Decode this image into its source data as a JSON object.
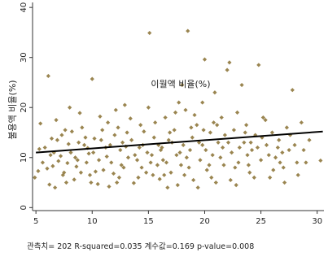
{
  "chart_data": {
    "type": "scatter",
    "xlabel": "이월액 비율(%)",
    "ylabel": "불용액 비율(%)",
    "xlim": [
      4.7,
      30.6
    ],
    "ylim": [
      -0.6,
      41
    ],
    "xticks": [
      5,
      10,
      15,
      20,
      25,
      30
    ],
    "yticks": [
      0,
      10,
      20,
      30,
      40
    ],
    "grid": false,
    "legend": "none",
    "marker_color": "#9a8550",
    "fit_color": "#000000",
    "fit_line": {
      "x": [
        5,
        30.5
      ],
      "y": [
        11.0,
        15.2
      ]
    },
    "annotation": "관측치= 202 R-squared=0.035 계수값=0.169 p-value=0.008",
    "series": [
      {
        "points": [
          [
            4.9,
            6.0
          ],
          [
            5.2,
            7.3
          ],
          [
            5.4,
            16.8
          ],
          [
            5.8,
            12.0
          ],
          [
            6.0,
            7.8
          ],
          [
            6.1,
            26.3
          ],
          [
            6.2,
            4.6
          ],
          [
            6.3,
            10.5
          ],
          [
            6.5,
            8.3
          ],
          [
            6.6,
            11.0
          ],
          [
            6.8,
            17.5
          ],
          [
            6.9,
            13.5
          ],
          [
            7.0,
            9.3
          ],
          [
            7.3,
            14.5
          ],
          [
            7.5,
            7.0
          ],
          [
            7.7,
            5.0
          ],
          [
            7.9,
            12.7
          ],
          [
            8.0,
            20.0
          ],
          [
            8.2,
            15.2
          ],
          [
            8.5,
            10.0
          ],
          [
            8.6,
            8.2
          ],
          [
            8.8,
            13.0
          ],
          [
            8.9,
            18.9
          ],
          [
            9.0,
            7.0
          ],
          [
            9.3,
            12.5
          ],
          [
            9.5,
            9.0
          ],
          [
            9.7,
            10.8
          ],
          [
            9.8,
            6.5
          ],
          [
            10.0,
            25.7
          ],
          [
            10.2,
            13.8
          ],
          [
            10.5,
            4.7
          ],
          [
            10.6,
            9.5
          ],
          [
            10.7,
            18.2
          ],
          [
            11.0,
            7.5
          ],
          [
            11.2,
            12.0
          ],
          [
            11.5,
            4.2
          ],
          [
            11.7,
            9.0
          ],
          [
            12.0,
            14.5
          ],
          [
            12.1,
            19.5
          ],
          [
            12.4,
            6.0
          ],
          [
            12.5,
            11.5
          ],
          [
            12.8,
            8.0
          ],
          [
            12.9,
            20.5
          ],
          [
            13.2,
            10.0
          ],
          [
            13.5,
            13.5
          ],
          [
            13.7,
            4.9
          ],
          [
            14.0,
            9.5
          ],
          [
            14.3,
            16.5
          ],
          [
            14.5,
            12.5
          ],
          [
            14.8,
            7.0
          ],
          [
            15.0,
            20.0
          ],
          [
            15.1,
            34.9
          ],
          [
            15.3,
            10.5
          ],
          [
            15.5,
            14.0
          ],
          [
            15.8,
            8.5
          ],
          [
            16.0,
            5.7
          ],
          [
            16.2,
            12.0
          ],
          [
            16.5,
            18.0
          ],
          [
            16.6,
            9.0
          ],
          [
            16.8,
            13.5
          ],
          [
            17.0,
            7.0
          ],
          [
            17.3,
            15.5
          ],
          [
            17.5,
            10.5
          ],
          [
            17.6,
            4.5
          ],
          [
            17.8,
            11.0
          ],
          [
            18.0,
            24.5
          ],
          [
            18.1,
            12.5
          ],
          [
            18.3,
            19.5
          ],
          [
            18.5,
            35.3
          ],
          [
            18.6,
            8.0
          ],
          [
            18.9,
            14.0
          ],
          [
            19.0,
            5.5
          ],
          [
            19.3,
            16.5
          ],
          [
            19.6,
            9.5
          ],
          [
            19.8,
            12.5
          ],
          [
            20.0,
            29.6
          ],
          [
            20.2,
            7.5
          ],
          [
            20.5,
            15.0
          ],
          [
            20.7,
            10.5
          ],
          [
            21.0,
            5.0
          ],
          [
            21.2,
            13.0
          ],
          [
            21.5,
            18.0
          ],
          [
            21.7,
            8.5
          ],
          [
            22.0,
            27.5
          ],
          [
            22.2,
            29.0
          ],
          [
            22.4,
            11.0
          ],
          [
            22.6,
            15.5
          ],
          [
            22.8,
            4.5
          ],
          [
            23.0,
            9.0
          ],
          [
            23.3,
            24.5
          ],
          [
            23.5,
            13.0
          ],
          [
            23.7,
            16.5
          ],
          [
            24.0,
            7.0
          ],
          [
            24.2,
            11.5
          ],
          [
            24.5,
            14.5
          ],
          [
            24.8,
            28.5
          ],
          [
            25.0,
            9.5
          ],
          [
            25.2,
            18.0
          ],
          [
            25.5,
            12.5
          ],
          [
            25.8,
            6.0
          ],
          [
            26.0,
            15.0
          ],
          [
            26.3,
            10.0
          ],
          [
            26.6,
            13.5
          ],
          [
            27.0,
            8.0
          ],
          [
            27.3,
            16.0
          ],
          [
            27.5,
            11.5
          ],
          [
            27.8,
            23.5
          ],
          [
            28.0,
            12.5
          ],
          [
            28.3,
            6.5
          ],
          [
            28.6,
            17.0
          ],
          [
            29.0,
            9.0
          ],
          [
            29.3,
            13.5
          ],
          [
            30.3,
            9.4
          ],
          [
            5.6,
            9.0
          ],
          [
            6.4,
            13.8
          ],
          [
            7.2,
            10.3
          ],
          [
            7.8,
            8.9
          ],
          [
            8.4,
            5.6
          ],
          [
            9.1,
            16.0
          ],
          [
            9.6,
            11.9
          ],
          [
            10.3,
            7.2
          ],
          [
            10.9,
            15.5
          ],
          [
            11.3,
            10.2
          ],
          [
            11.9,
            6.8
          ],
          [
            12.3,
            16.0
          ],
          [
            13.0,
            12.2
          ],
          [
            13.4,
            17.8
          ],
          [
            14.1,
            6.0
          ],
          [
            14.6,
            15.2
          ],
          [
            15.2,
            9.0
          ],
          [
            15.6,
            17.0
          ],
          [
            16.1,
            11.5
          ],
          [
            16.4,
            6.5
          ],
          [
            17.1,
            13.0
          ],
          [
            17.4,
            19.0
          ],
          [
            18.2,
            6.5
          ],
          [
            18.7,
            11.5
          ],
          [
            19.1,
            18.5
          ],
          [
            19.5,
            13.0
          ],
          [
            20.1,
            11.5
          ],
          [
            20.6,
            6.0
          ],
          [
            21.1,
            16.5
          ],
          [
            21.4,
            10.0
          ],
          [
            22.1,
            13.0
          ],
          [
            22.7,
            8.0
          ],
          [
            23.1,
            12.0
          ],
          [
            23.8,
            10.5
          ],
          [
            24.4,
            6.0
          ],
          [
            25.1,
            14.0
          ],
          [
            25.7,
            10.5
          ],
          [
            26.1,
            7.5
          ],
          [
            26.9,
            11.0
          ],
          [
            27.6,
            14.5
          ],
          [
            28.2,
            9.0
          ],
          [
            5.3,
            11.7
          ],
          [
            8.1,
            11.0
          ],
          [
            12.6,
            8.5
          ],
          [
            19.8,
            21.0
          ],
          [
            20.9,
            23.0
          ],
          [
            14.9,
            11.0
          ],
          [
            6.7,
            4.0
          ],
          [
            9.4,
            14.0
          ],
          [
            13.8,
            10.5
          ],
          [
            18.8,
            16.0
          ],
          [
            23.6,
            15.0
          ],
          [
            16.9,
            15.0
          ],
          [
            11.6,
            12.5
          ],
          [
            10.1,
            11.0
          ],
          [
            7.6,
            15.5
          ],
          [
            15.9,
            12.5
          ],
          [
            24.7,
            12.0
          ],
          [
            21.8,
            14.5
          ],
          [
            17.9,
            8.5
          ],
          [
            19.4,
            4.0
          ],
          [
            22.3,
            5.5
          ],
          [
            26.5,
            12.0
          ],
          [
            12.2,
            5.0
          ],
          [
            8.7,
            9.5
          ],
          [
            14.4,
            8.0
          ],
          [
            25.4,
            17.5
          ],
          [
            27.1,
            5.0
          ],
          [
            20.4,
            8.5
          ],
          [
            16.7,
            4.0
          ],
          [
            13.1,
            15.0
          ],
          [
            9.9,
            5.0
          ],
          [
            18.4,
            10.0
          ],
          [
            23.9,
            8.5
          ],
          [
            11.4,
            17.0
          ],
          [
            15.4,
            6.5
          ],
          [
            7.4,
            6.5
          ],
          [
            21.6,
            12.0
          ],
          [
            28.8,
            11.5
          ],
          [
            22.9,
            19.0
          ],
          [
            17.7,
            21.0
          ],
          [
            24.1,
            13.0
          ],
          [
            19.9,
            15.5
          ],
          [
            26.7,
            9.0
          ],
          [
            10.8,
            13.5
          ],
          [
            12.7,
            13.0
          ],
          [
            14.2,
            12.0
          ],
          [
            16.3,
            9.5
          ],
          [
            20.8,
            17.0
          ]
        ]
      }
    ]
  }
}
